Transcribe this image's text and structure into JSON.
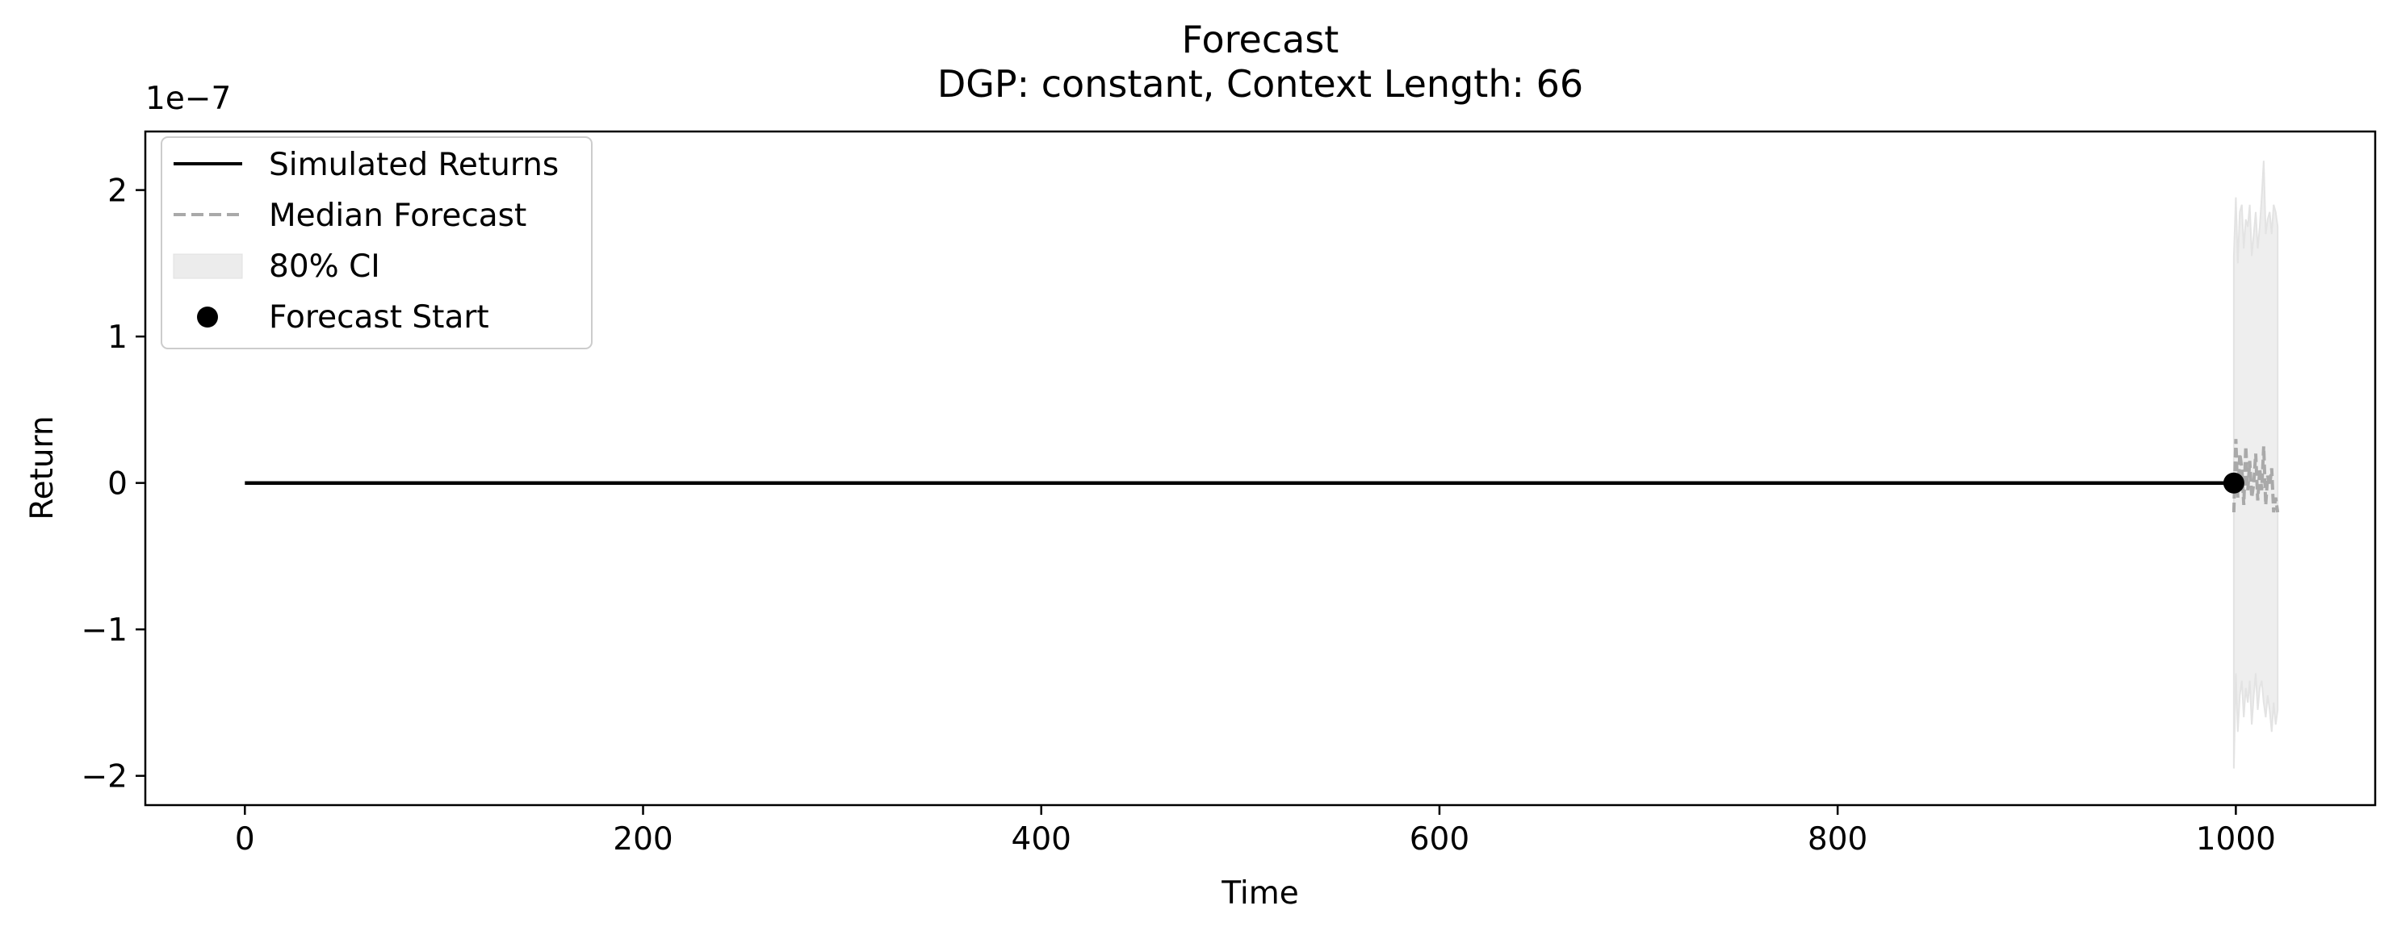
{
  "chart_data": {
    "type": "line",
    "title": "Forecast",
    "subtitle": "DGP: constant, Context Length: 66",
    "xlabel": "Time",
    "ylabel": "Return",
    "y_offset_label": "1e−7",
    "y_scale": 1e-07,
    "xlim": [
      -50,
      1070
    ],
    "ylim": [
      -2.2,
      2.4
    ],
    "x_ticks": [
      0,
      200,
      400,
      600,
      800,
      1000
    ],
    "x_tick_labels": [
      "0",
      "200",
      "400",
      "600",
      "800",
      "1000"
    ],
    "y_ticks": [
      2,
      1,
      0,
      -1,
      -2
    ],
    "y_tick_labels": [
      "2",
      "1",
      "0",
      "−1",
      "−2"
    ],
    "grid": false,
    "legend": {
      "placement": "upper-left",
      "entries": [
        {
          "name": "Simulated Returns",
          "style": "solid-line",
          "color": "#000000"
        },
        {
          "name": "Median Forecast",
          "style": "dashed-line",
          "color": "#a9a9a9"
        },
        {
          "name": "80% CI",
          "style": "patch",
          "color": "#ececec"
        },
        {
          "name": "Forecast Start",
          "style": "marker",
          "color": "#000000"
        }
      ]
    },
    "series": [
      {
        "name": "Simulated Returns",
        "x": [
          0,
          999
        ],
        "y": [
          0,
          0
        ]
      },
      {
        "name": "Median Forecast",
        "x": [
          999,
          1000,
          1001,
          1002,
          1003,
          1004,
          1005,
          1006,
          1007,
          1008,
          1009,
          1010,
          1011,
          1012,
          1013,
          1014,
          1015,
          1016,
          1017,
          1018,
          1019,
          1020,
          1021
        ],
        "y": [
          -0.2,
          0.3,
          -0.1,
          0.2,
          0.1,
          -0.15,
          0.25,
          -0.05,
          0.15,
          -0.1,
          0.0,
          0.2,
          -0.12,
          0.1,
          -0.05,
          0.25,
          -0.15,
          0.05,
          -0.02,
          0.1,
          -0.2,
          -0.1,
          -0.2
        ]
      },
      {
        "name": "80% CI",
        "x": [
          999,
          1000,
          1001,
          1002,
          1003,
          1004,
          1005,
          1006,
          1007,
          1008,
          1009,
          1010,
          1011,
          1012,
          1013,
          1014,
          1015,
          1016,
          1017,
          1018,
          1019,
          1020,
          1021
        ],
        "upper": [
          1.55,
          1.95,
          1.5,
          1.85,
          1.9,
          1.6,
          1.8,
          1.75,
          1.9,
          1.55,
          1.7,
          1.85,
          1.6,
          1.75,
          1.95,
          2.2,
          1.7,
          1.8,
          1.85,
          1.7,
          1.9,
          1.85,
          1.75
        ],
        "lower": [
          -1.95,
          -1.3,
          -1.7,
          -1.45,
          -1.35,
          -1.6,
          -1.4,
          -1.5,
          -1.35,
          -1.65,
          -1.45,
          -1.3,
          -1.55,
          -1.4,
          -1.35,
          -1.5,
          -1.6,
          -1.45,
          -1.55,
          -1.7,
          -1.5,
          -1.65,
          -1.55
        ]
      }
    ],
    "markers": [
      {
        "name": "Forecast Start",
        "x": 999,
        "y": 0
      }
    ]
  }
}
